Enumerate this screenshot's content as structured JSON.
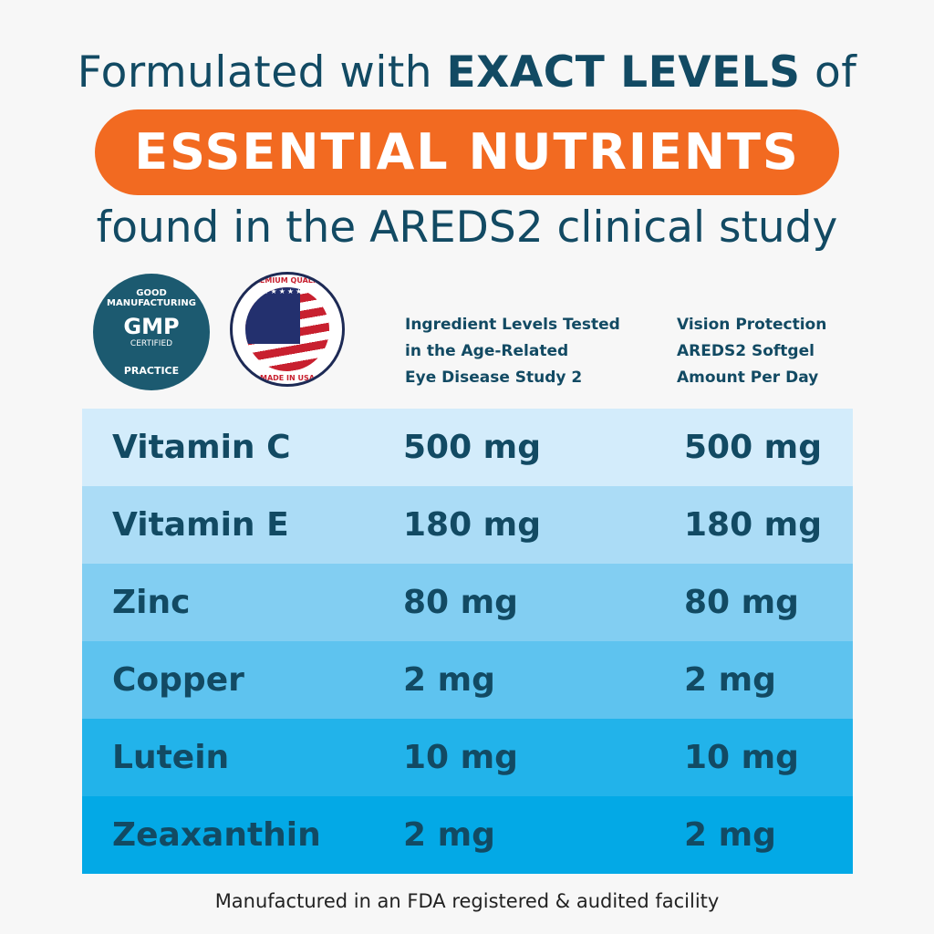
{
  "headline": {
    "prefix": "Formulated with ",
    "emphasis": "EXACT LEVELS",
    "suffix": " of"
  },
  "pill": {
    "text": "ESSENTIAL NUTRIENTS",
    "color": "#f26a21"
  },
  "subheadline": "found in the AREDS2 clinical study",
  "badges": {
    "gmp": {
      "top": "GOOD MANUFACTURING",
      "main": "GMP",
      "sub": "CERTIFIED",
      "bottom": "PRACTICE"
    },
    "usa": {
      "top": "PREMIUM QUALITY",
      "bottom": "MADE IN USA"
    }
  },
  "table": {
    "headers": [
      "Ingredient Levels Tested\nin the Age-Related\nEye Disease Study 2",
      "Vision Protection\nAREDS2 Softgel\nAmount Per Day"
    ],
    "rows": [
      {
        "name": "Vitamin C",
        "tested": "500 mg",
        "softgel": "500 mg",
        "color": "#d3ecfb"
      },
      {
        "name": "Vitamin E",
        "tested": "180 mg",
        "softgel": "180 mg",
        "color": "#abdcf6"
      },
      {
        "name": "Zinc",
        "tested": "80 mg",
        "softgel": "80 mg",
        "color": "#82cef2"
      },
      {
        "name": "Copper",
        "tested": "2 mg",
        "softgel": "2 mg",
        "color": "#5ec3ef"
      },
      {
        "name": "Lutein",
        "tested": "10 mg",
        "softgel": "10 mg",
        "color": "#22b3ea"
      },
      {
        "name": "Zeaxanthin",
        "tested": "2 mg",
        "softgel": "2 mg",
        "color": "#03a9e6"
      }
    ]
  },
  "footer": "Manufactured in an FDA registered & audited facility"
}
